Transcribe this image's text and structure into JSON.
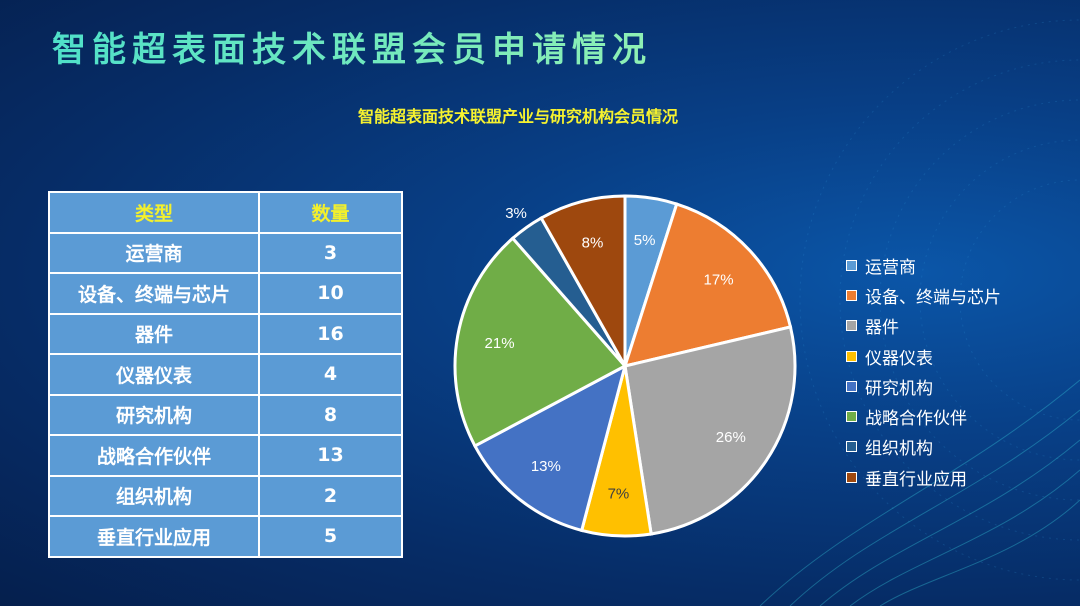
{
  "header": {
    "title": "智能超表面技术联盟会员申请情况"
  },
  "table": {
    "headers": [
      "类型",
      "数量"
    ],
    "rows": [
      {
        "type": "运营商",
        "count": "3"
      },
      {
        "type": "设备、终端与芯片",
        "count": "10"
      },
      {
        "type": "器件",
        "count": "16"
      },
      {
        "type": "仪器仪表",
        "count": "4"
      },
      {
        "type": "研究机构",
        "count": "8"
      },
      {
        "type": "战略合作伙伴",
        "count": "13"
      },
      {
        "type": "组织机构",
        "count": "2"
      },
      {
        "type": "垂直行业应用",
        "count": "5"
      }
    ]
  },
  "chart_data": {
    "type": "pie",
    "title": "智能超表面技术联盟产业与研究机构会员情况",
    "categories": [
      "运营商",
      "设备、终端与芯片",
      "器件",
      "仪器仪表",
      "研究机构",
      "战略合作伙伴",
      "组织机构",
      "垂直行业应用"
    ],
    "values": [
      3,
      10,
      16,
      4,
      8,
      13,
      2,
      5
    ],
    "labels": [
      "5%",
      "17%",
      "26%",
      "7%",
      "13%",
      "21%",
      "3%",
      "8%"
    ],
    "colors": [
      "#5b9bd5",
      "#ed7d31",
      "#a5a5a5",
      "#ffc000",
      "#4472c4",
      "#70ad47",
      "#255e91",
      "#9e480e"
    ],
    "legend_position": "right"
  }
}
